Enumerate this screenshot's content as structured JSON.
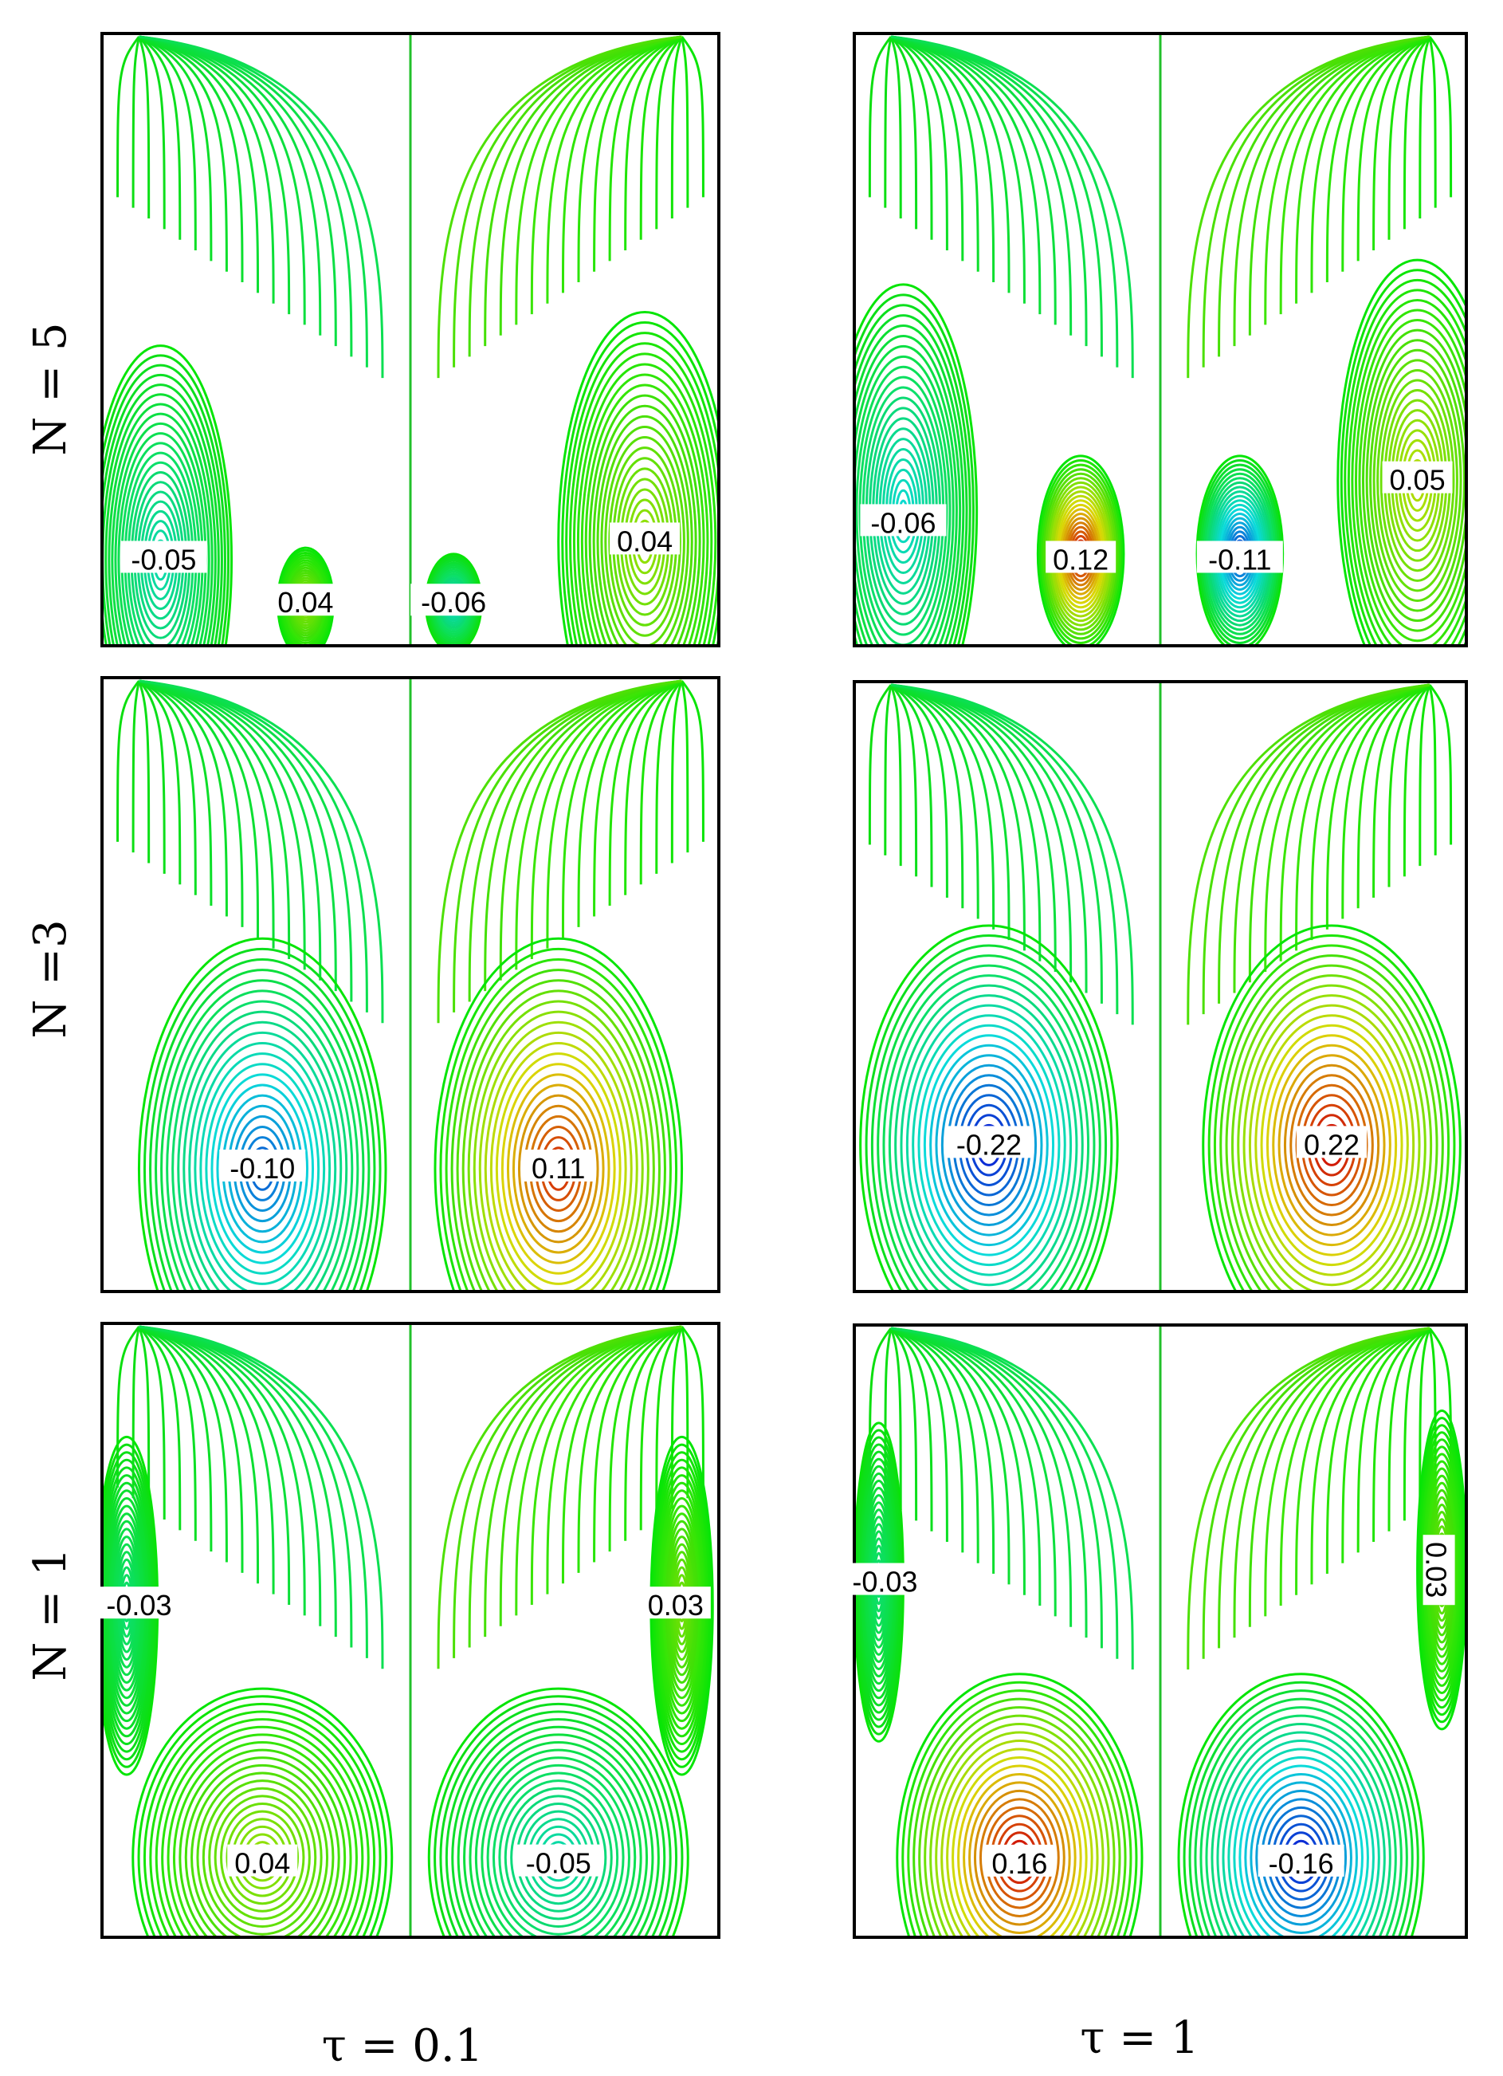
{
  "figure": {
    "row_labels": [
      "N = 5",
      "N =3",
      "N = 1"
    ],
    "column_labels": [
      "τ = 0.1",
      "τ = 1"
    ],
    "panels": [
      {
        "id": "n5-tau01",
        "row": 0,
        "col": 0,
        "cells": [
          {
            "label": "-0.05",
            "value": -0.05
          },
          {
            "label": "0.04",
            "value": 0.04
          },
          {
            "label": "-0.06",
            "value": -0.06
          },
          {
            "label": "0.04",
            "value": 0.04
          }
        ]
      },
      {
        "id": "n5-tau1",
        "row": 0,
        "col": 1,
        "cells": [
          {
            "label": "-0.06",
            "value": -0.06
          },
          {
            "label": "0.12",
            "value": 0.12
          },
          {
            "label": "-0.11",
            "value": -0.11
          },
          {
            "label": "0.05",
            "value": 0.05
          }
        ]
      },
      {
        "id": "n3-tau01",
        "row": 1,
        "col": 0,
        "cells": [
          {
            "label": "-0.10",
            "value": -0.1
          },
          {
            "label": "0.11",
            "value": 0.11
          }
        ]
      },
      {
        "id": "n3-tau1",
        "row": 1,
        "col": 1,
        "cells": [
          {
            "label": "-0.22",
            "value": -0.22
          },
          {
            "label": "0.22",
            "value": 0.22
          }
        ]
      },
      {
        "id": "n1-tau01",
        "row": 2,
        "col": 0,
        "cells": [
          {
            "label": "-0.03",
            "value": -0.03
          },
          {
            "label": "0.04",
            "value": 0.04
          },
          {
            "label": "-0.05",
            "value": -0.05
          },
          {
            "label": "0.03",
            "value": 0.03
          }
        ]
      },
      {
        "id": "n1-tau1",
        "row": 2,
        "col": 1,
        "cells": [
          {
            "label": "-0.03",
            "value": -0.03
          },
          {
            "label": "0.16",
            "value": 0.16
          },
          {
            "label": "-0.16",
            "value": -0.16
          },
          {
            "label": "0.03",
            "value": 0.03
          }
        ]
      }
    ]
  }
}
